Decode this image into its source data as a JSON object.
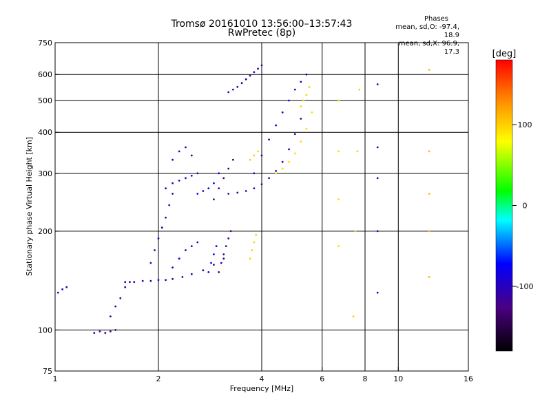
{
  "header": {
    "title": "Tromsø 20161010 13:56:00–13:57:43",
    "subtitle": "RwPretec (8p)"
  },
  "stats": {
    "label": "Phases",
    "o_line": "mean, sd,O: -97.4, 18.9",
    "x_line": "mean, sd,X:  96.9, 17.3"
  },
  "chart_data": {
    "type": "scatter",
    "title": "Tromsø 20161010 13:56:00–13:57:43",
    "subtitle": "RwPretec (8p)",
    "xlabel": "Frequency [MHz]",
    "ylabel": "Stationary phase Virtual Height [km]",
    "x_scale": "log",
    "y_scale": "log",
    "xlim": [
      1,
      16
    ],
    "ylim": [
      75,
      750
    ],
    "x_ticks": [
      1,
      2,
      4,
      6,
      8,
      10,
      16
    ],
    "y_ticks": [
      75,
      100,
      200,
      300,
      400,
      500,
      600,
      750
    ],
    "x_gridlines": [
      2,
      4,
      6,
      8,
      10
    ],
    "y_gridlines": [
      100,
      200,
      300,
      400,
      500,
      600
    ],
    "grid": true,
    "colorbar": {
      "label": "[deg]",
      "range": [
        -180,
        180
      ],
      "ticks": [
        100,
        0,
        -100
      ],
      "colors": [
        "#000000",
        "#4b0082",
        "#0000ff",
        "#00ffff",
        "#00ff00",
        "#ffff00",
        "#ff8c00",
        "#ff0000"
      ]
    },
    "phase_colors": {
      "o_mode": "#2244dd",
      "x_mode": "#ffaa00"
    },
    "traces": [
      {
        "x": [
          1.02,
          1.05,
          1.08
        ],
        "y": [
          130,
          133,
          135
        ],
        "phase": -110
      },
      {
        "x": [
          1.3,
          1.35,
          1.4,
          1.45,
          1.5
        ],
        "y": [
          98,
          99,
          98,
          99,
          100
        ],
        "phase": -120
      },
      {
        "x": [
          1.45,
          1.5,
          1.55,
          1.6,
          1.65
        ],
        "y": [
          110,
          118,
          125,
          135,
          140
        ],
        "phase": -115
      },
      {
        "x": [
          1.6,
          1.7,
          1.8,
          1.9,
          2.0,
          2.1,
          2.2,
          2.35,
          2.5,
          2.7,
          2.9,
          3.1
        ],
        "y": [
          140,
          140,
          141,
          141,
          142,
          142,
          143,
          145,
          148,
          152,
          158,
          165
        ],
        "phase": -110
      },
      {
        "x": [
          1.9,
          1.95,
          2.0,
          2.05,
          2.1,
          2.15,
          2.2
        ],
        "y": [
          160,
          175,
          190,
          205,
          220,
          240,
          260
        ],
        "phase": -105
      },
      {
        "x": [
          2.2,
          2.3,
          2.4,
          2.5,
          2.6
        ],
        "y": [
          155,
          165,
          175,
          180,
          185
        ],
        "phase": -95
      },
      {
        "x": [
          2.8,
          2.85,
          2.9,
          2.95
        ],
        "y": [
          150,
          160,
          170,
          180
        ],
        "phase": -80
      },
      {
        "x": [
          3.0,
          3.05,
          3.1,
          3.15,
          3.2,
          3.25
        ],
        "y": [
          150,
          160,
          170,
          180,
          190,
          200
        ],
        "phase": -130
      },
      {
        "x": [
          3.7,
          3.75,
          3.8,
          3.85
        ],
        "y": [
          165,
          175,
          185,
          195
        ],
        "phase": 100
      },
      {
        "x": [
          2.1,
          2.2,
          2.3,
          2.4,
          2.5,
          2.6
        ],
        "y": [
          270,
          280,
          285,
          290,
          295,
          300
        ],
        "phase": -100
      },
      {
        "x": [
          2.2,
          2.3,
          2.4,
          2.5
        ],
        "y": [
          330,
          350,
          360,
          340
        ],
        "phase": -100
      },
      {
        "x": [
          2.6,
          2.7,
          2.8,
          2.9,
          3.0
        ],
        "y": [
          260,
          265,
          270,
          280,
          300
        ],
        "phase": -80
      },
      {
        "x": [
          2.9,
          3.0,
          3.1,
          3.2,
          3.3
        ],
        "y": [
          250,
          270,
          290,
          310,
          330
        ],
        "phase": -130
      },
      {
        "x": [
          3.2,
          3.4,
          3.6,
          3.8,
          4.0,
          4.2,
          4.4,
          4.6,
          4.8,
          5.0,
          5.2
        ],
        "y": [
          260,
          262,
          265,
          270,
          278,
          290,
          305,
          325,
          355,
          395,
          440
        ],
        "phase": -110
      },
      {
        "x": [
          3.8,
          4.0,
          4.2,
          4.4,
          4.6,
          4.8,
          5.0,
          5.2,
          5.4
        ],
        "y": [
          300,
          340,
          380,
          420,
          460,
          500,
          540,
          570,
          600
        ],
        "phase": -100
      },
      {
        "x": [
          3.7,
          3.8,
          3.9
        ],
        "y": [
          330,
          340,
          350
        ],
        "phase": 100
      },
      {
        "x": [
          4.4,
          4.6,
          4.8,
          5.0,
          5.2,
          5.4,
          5.6
        ],
        "y": [
          300,
          310,
          325,
          345,
          375,
          410,
          460
        ],
        "phase": 95
      },
      {
        "x": [
          5.2,
          5.3,
          5.4,
          5.5
        ],
        "y": [
          480,
          500,
          520,
          550
        ],
        "phase": 100
      },
      {
        "x": [
          3.2,
          3.3,
          3.4,
          3.5,
          3.6,
          3.7,
          3.8,
          3.9,
          4.0
        ],
        "y": [
          530,
          540,
          550,
          565,
          580,
          595,
          610,
          625,
          640
        ],
        "phase": -110
      },
      {
        "x": [
          6.7,
          6.7,
          6.7,
          6.7
        ],
        "y": [
          180,
          250,
          350,
          500
        ],
        "phase": 95
      },
      {
        "x": [
          7.4,
          7.5,
          7.6,
          7.7
        ],
        "y": [
          110,
          200,
          350,
          540
        ],
        "phase": 100
      },
      {
        "x": [
          8.7,
          8.7,
          8.7,
          8.7,
          8.7
        ],
        "y": [
          130,
          200,
          290,
          360,
          560
        ],
        "phase": -90
      },
      {
        "x": [
          12.3,
          12.3,
          12.3,
          12.3,
          12.3
        ],
        "y": [
          145,
          200,
          260,
          350,
          620
        ],
        "phase": 110
      }
    ]
  }
}
